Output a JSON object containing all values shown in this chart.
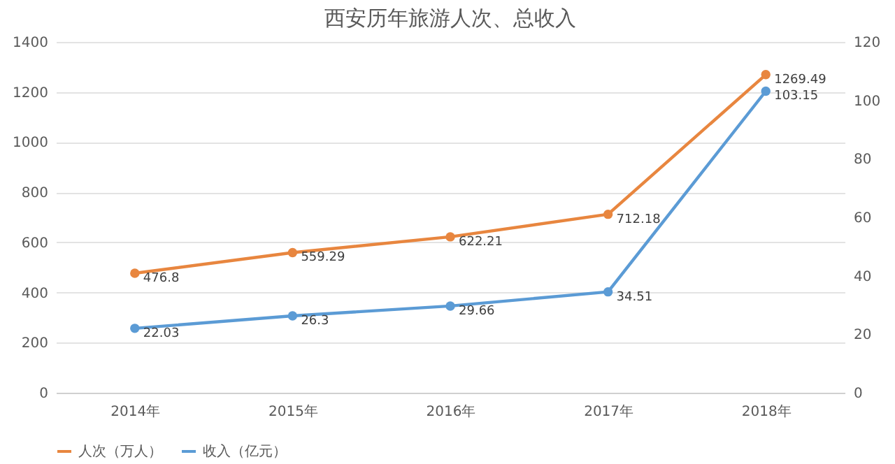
{
  "chart_data": {
    "type": "line",
    "title": "西安历年旅游人次、总收入",
    "categories": [
      "2014年",
      "2015年",
      "2016年",
      "2017年",
      "2018年"
    ],
    "series": [
      {
        "name": "人次（万人）",
        "color": "#e8863f",
        "values": [
          476.8,
          559.29,
          622.21,
          712.18,
          1269.49
        ]
      },
      {
        "name": "收入（亿元）",
        "color": "#5b9bd5",
        "values": [
          22.03,
          26.3,
          29.66,
          34.51,
          103.15
        ],
        "axis": "y2"
      }
    ],
    "ylim": [
      0,
      1400
    ],
    "yticks": [
      0,
      200,
      400,
      600,
      800,
      1000,
      1200,
      1400
    ],
    "y2lim": [
      0,
      120
    ],
    "y2ticks": [
      0,
      20,
      40,
      60,
      80,
      100,
      120
    ],
    "grid": "y",
    "legend": "bottom",
    "marker": "circle",
    "line_style": "solid",
    "data_labels": true
  }
}
